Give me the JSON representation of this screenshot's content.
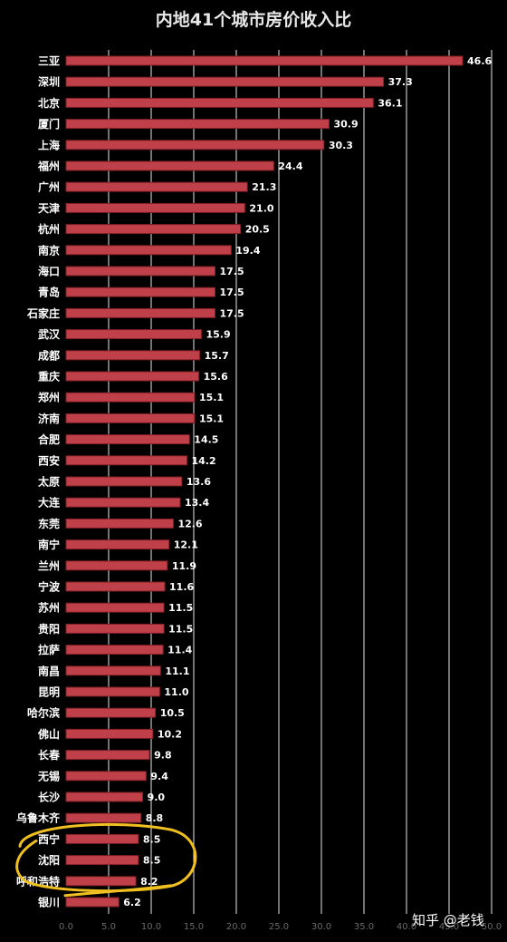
{
  "chart_data": {
    "type": "bar",
    "orientation": "horizontal",
    "title": "内地41个城市房价收入比",
    "categories": [
      "三亚",
      "深圳",
      "北京",
      "厦门",
      "上海",
      "福州",
      "广州",
      "天津",
      "杭州",
      "南京",
      "海口",
      "青岛",
      "石家庄",
      "武汉",
      "成都",
      "重庆",
      "郑州",
      "济南",
      "合肥",
      "西安",
      "太原",
      "大连",
      "东莞",
      "南宁",
      "兰州",
      "宁波",
      "苏州",
      "贵阳",
      "拉萨",
      "南昌",
      "昆明",
      "哈尔滨",
      "佛山",
      "长春",
      "无锡",
      "长沙",
      "乌鲁木齐",
      "西宁",
      "沈阳",
      "呼和浩特",
      "银川"
    ],
    "values": [
      46.6,
      37.3,
      36.1,
      30.9,
      30.3,
      24.4,
      21.3,
      21.0,
      20.5,
      19.4,
      17.5,
      17.5,
      17.5,
      15.9,
      15.7,
      15.6,
      15.1,
      15.1,
      14.5,
      14.2,
      13.6,
      13.4,
      12.6,
      12.1,
      11.9,
      11.6,
      11.5,
      11.5,
      11.4,
      11.1,
      11.0,
      10.5,
      10.2,
      9.8,
      9.4,
      9.0,
      8.8,
      8.5,
      8.5,
      8.2,
      6.2
    ],
    "value_labels": [
      "46.6",
      "37.3",
      "36.1",
      "30.9",
      "30.3",
      "24.4",
      "21.3",
      "21.0",
      "20.5",
      "19.4",
      "17.5",
      "17.5",
      "17.5",
      "15.9",
      "15.7",
      "15.6",
      "15.1",
      "15.1",
      "14.5",
      "14.2",
      "13.6",
      "13.4",
      "12.6",
      "12.1",
      "11.9",
      "11.6",
      "11.5",
      "11.5",
      "11.4",
      "11.1",
      "11.0",
      "10.5",
      "10.2",
      "9.8",
      "9.4",
      "9.0",
      "8.8",
      "8.5",
      "8.5",
      "8.2",
      "6.2"
    ],
    "x_ticks": [
      "0.0",
      "5.0",
      "10.0",
      "15.0",
      "20.0",
      "25.0",
      "30.0",
      "35.0",
      "40.0",
      "45.0",
      "50.0"
    ],
    "xlim": [
      0,
      50
    ],
    "grid": true,
    "highlighted_categories": [
      "西宁",
      "沈阳",
      "呼和浩特"
    ],
    "colors": {
      "background": "#000000",
      "bar": "#c0404a",
      "bar_edge": "#7e1e24",
      "grid": "#e6e6e6",
      "highlight": "#f0c020"
    }
  },
  "watermark": "知乎 @老钱"
}
